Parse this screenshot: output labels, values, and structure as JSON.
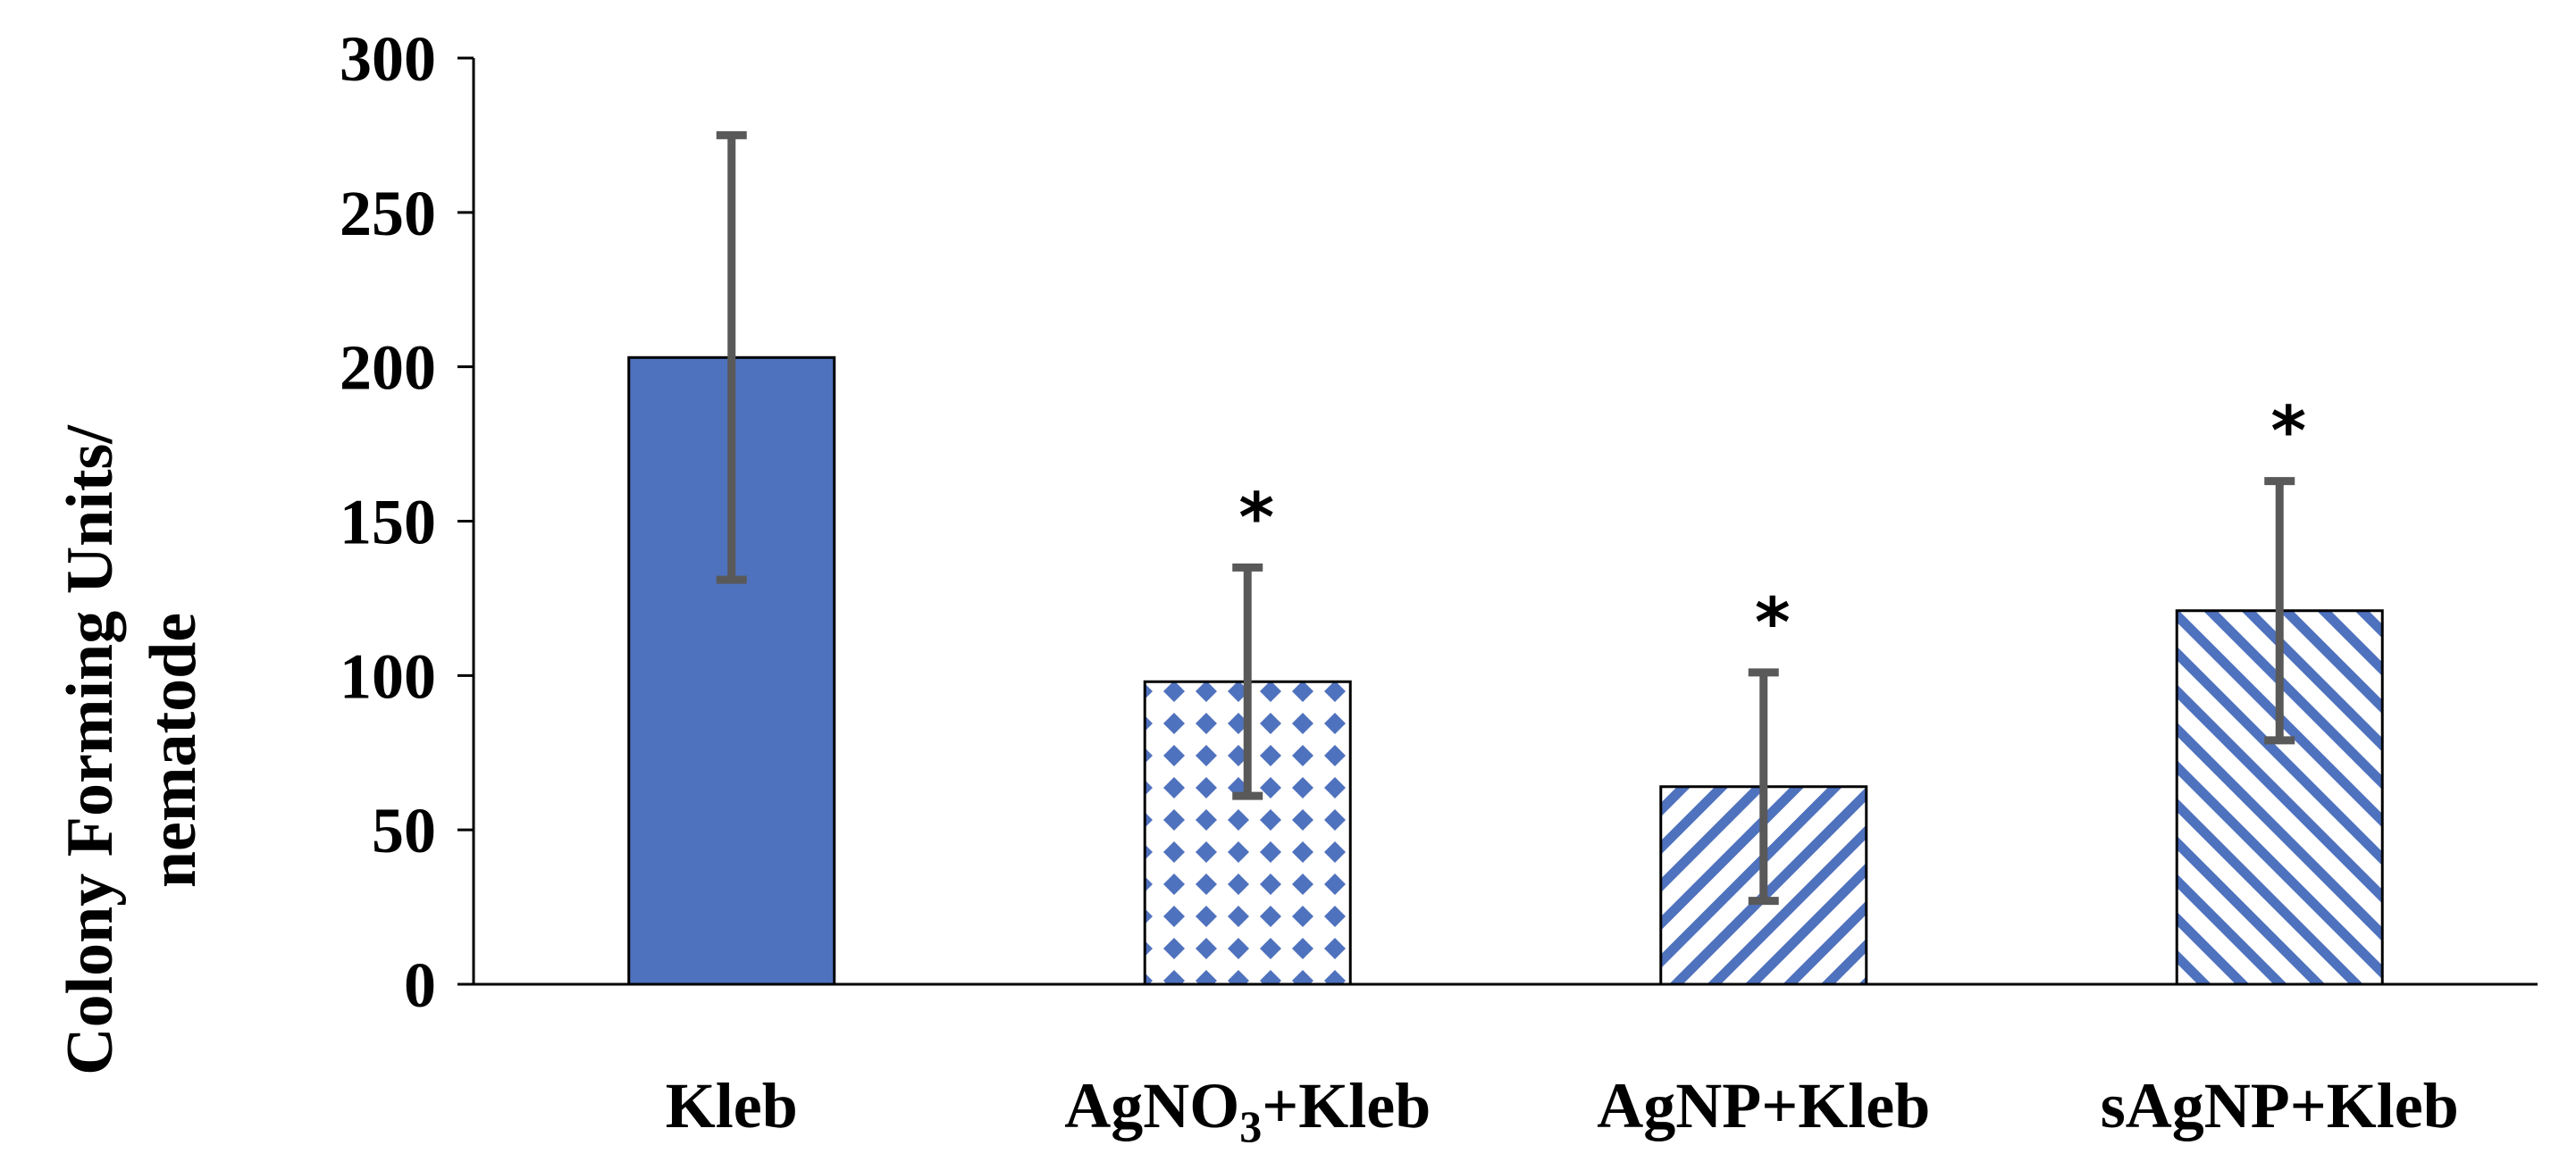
{
  "chart_data": {
    "type": "bar",
    "title": "",
    "xlabel": "",
    "ylabel": [
      "Colony Forming Units/",
      "nematode"
    ],
    "ylim": [
      0,
      300
    ],
    "yticks": [
      0,
      50,
      100,
      150,
      200,
      250,
      300
    ],
    "categories": [
      {
        "label": "Kleb"
      },
      {
        "label": "AgNO",
        "subscript": "3",
        "suffix": "+Kleb"
      },
      {
        "label": "AgNP+Kleb"
      },
      {
        "label": "sAgNP+Kleb"
      }
    ],
    "values": [
      203,
      98,
      64,
      121
    ],
    "error": [
      72,
      37,
      37,
      42
    ],
    "fills": [
      "solid",
      "diamonds",
      "diagonal-down",
      "diagonal-up"
    ],
    "significance": [
      "",
      "*",
      "*",
      "*"
    ],
    "colors": {
      "bar": "#4f72be",
      "bar_outline": "#000000",
      "error_bar": "#595959",
      "axis": "#000000"
    }
  }
}
